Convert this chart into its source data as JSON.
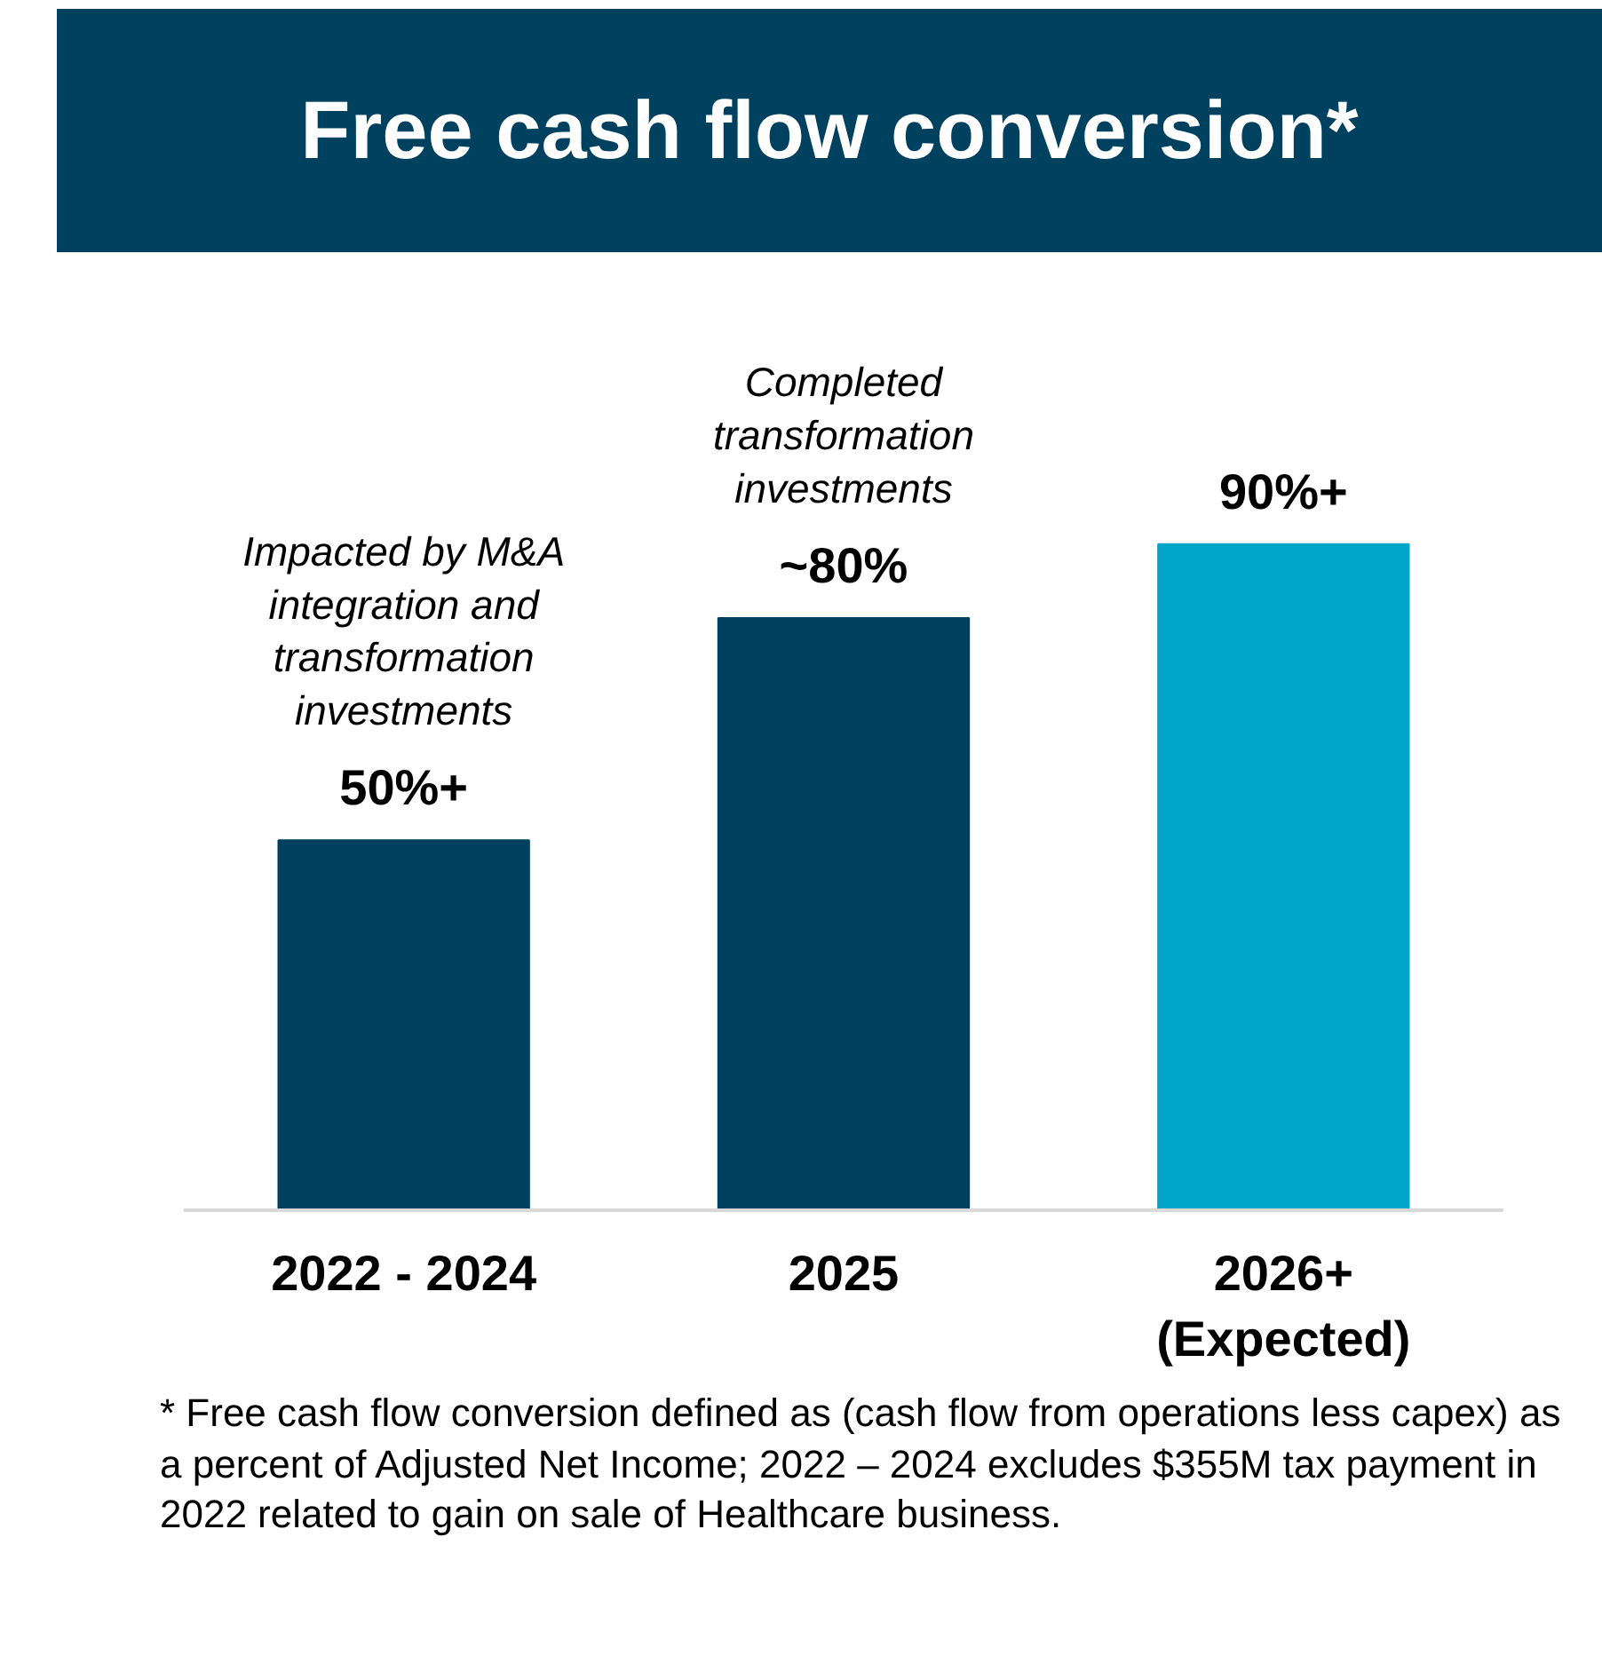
{
  "chart_data": {
    "type": "bar",
    "title": "Free cash flow conversion*",
    "categories": [
      "2022 - 2024",
      "2025",
      "2026+\n(Expected)"
    ],
    "values": [
      50,
      80,
      90
    ],
    "value_labels": [
      "50%+",
      "~80%",
      "90%+"
    ],
    "colors": [
      "#00415f",
      "#00415f",
      "#00a5c8"
    ],
    "grid": false,
    "annotations": [
      "Impacted by M&A\nintegration and\ntransformation\ninvestments",
      "Completed\ntransformation\ninvestments",
      "* Free cash flow conversion defined as (cash flow from operations less capex) as a percent of Adjusted Net Income; 2022 – 2024 excludes $355M tax payment in 2022 related to gain on sale of Healthcare business."
    ]
  }
}
